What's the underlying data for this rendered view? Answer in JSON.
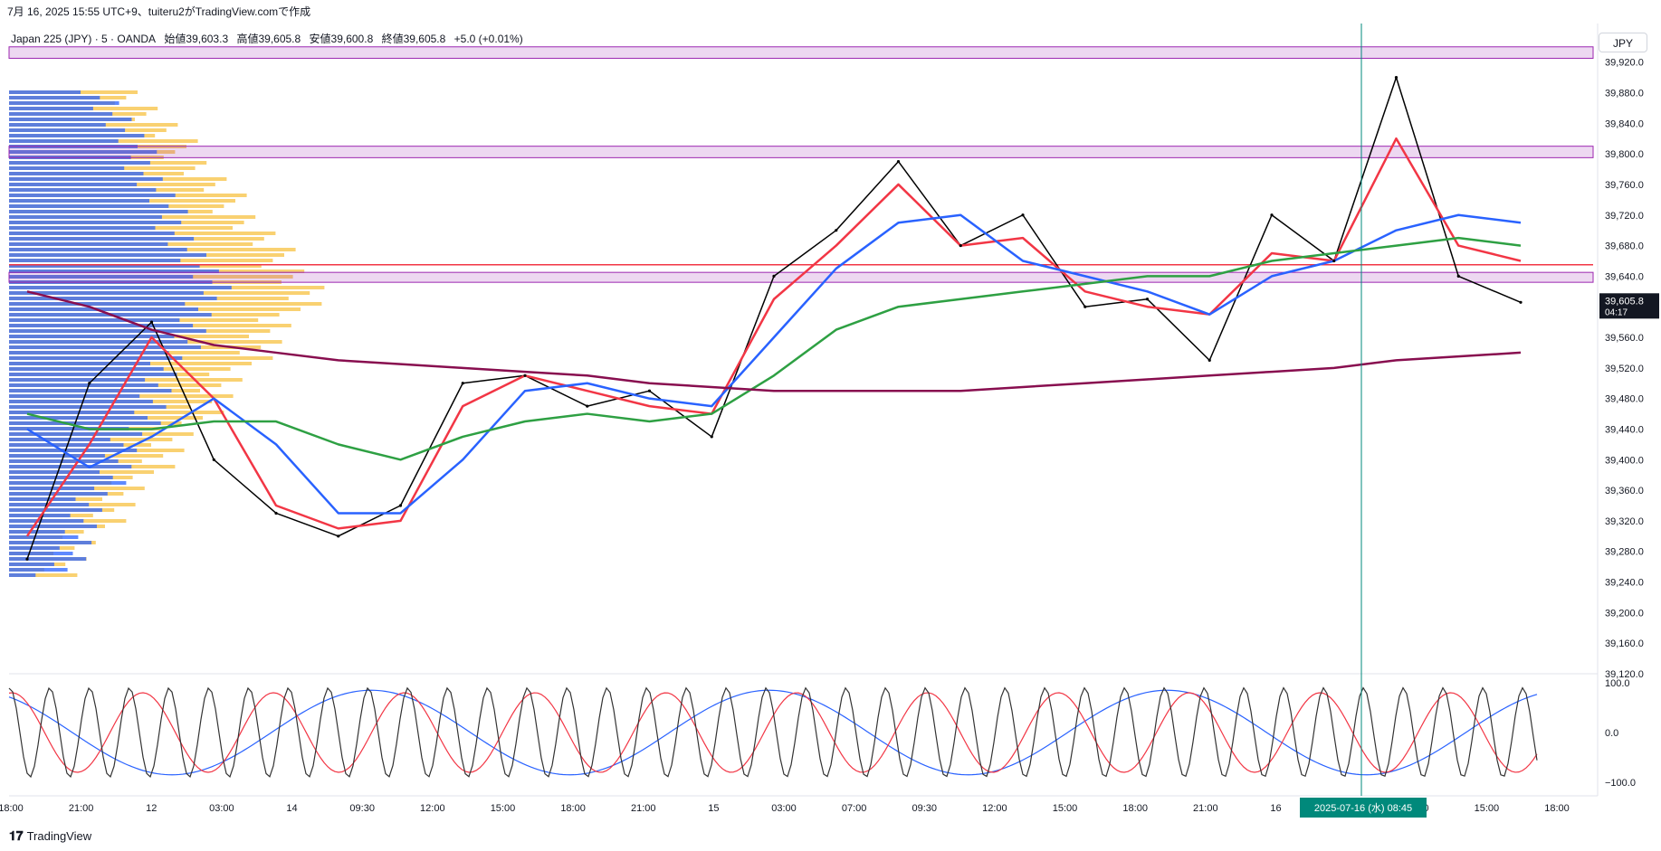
{
  "header": {
    "caption": "7月 16, 2025 15:55 UTC+9、tuiteru2がTradingView.comで作成"
  },
  "legend": {
    "symbol": "Japan 225 (JPY) · 5 · OANDA",
    "open": "始値39,603.3",
    "high": "高値39,605.8",
    "low": "安値39,600.8",
    "close": "終値39,605.8",
    "change": "+5.0 (+0.01%)"
  },
  "currency": "JPY",
  "price_axis": {
    "ticks": [
      "39,920.0",
      "39,880.0",
      "39,840.0",
      "39,800.0",
      "39,760.0",
      "39,720.0",
      "39,680.0",
      "39,640.0",
      "39,600.0",
      "39,560.0",
      "39,520.0",
      "39,480.0",
      "39,440.0",
      "39,400.0",
      "39,360.0",
      "39,320.0",
      "39,280.0",
      "39,240.0",
      "39,200.0",
      "39,160.0",
      "39,120.0"
    ],
    "current_price": "39,605.8",
    "countdown": "04:17"
  },
  "osc_axis": {
    "ticks": [
      "100.0",
      "0.0",
      "−100.0"
    ]
  },
  "time_axis": {
    "labels": [
      "18:00",
      "21:00",
      "12",
      "03:00",
      "14",
      "09:30",
      "12:00",
      "15:00",
      "18:00",
      "21:00",
      "15",
      "03:00",
      "07:00",
      "09:30",
      "12:00",
      "15:00",
      "18:00",
      "21:00",
      "16",
      "03:00",
      "12:00",
      "15:00",
      "18:00"
    ],
    "crosshair_label": "2025-07-16 (水)   08:45"
  },
  "footer": {
    "brand": "TradingView"
  },
  "colors": {
    "candle": "#000000",
    "ema_fast": "#f23645",
    "ema_mid": "#2962ff",
    "ema_slow": "#2ea043",
    "ema_long": "#880e4f",
    "zone": "#9c27b0",
    "hline": "#f23645",
    "crosshair": "#00897b",
    "vp_up": "#f7c242",
    "vp_down": "#2962ff"
  },
  "chart_data": {
    "type": "line",
    "title": "",
    "ylim": [
      39120,
      39935
    ],
    "x": [
      "7/14 09:30",
      "7/14 12:00",
      "7/14 14:30",
      "7/14 17:00",
      "7/14 20:00",
      "7/15 00:00",
      "7/15 03:00",
      "7/15 06:00",
      "7/15 09:00",
      "7/15 11:00",
      "7/15 13:30",
      "7/15 15:30",
      "7/15 18:00",
      "7/15 20:00",
      "7/15 21:30",
      "7/16 00:00",
      "7/16 03:00",
      "7/16 05:00",
      "7/16 07:00",
      "7/16 08:45",
      "7/16 11:00",
      "7/16 13:00",
      "7/16 14:00",
      "7/16 15:00",
      "7/16 15:55"
    ],
    "series": [
      {
        "values": [
          39270,
          39500,
          39580,
          39400,
          39330,
          39300,
          39340,
          39500,
          39510,
          39470,
          39490,
          39430,
          39640,
          39700,
          39790,
          39680,
          39720,
          39600,
          39610,
          39530,
          39720,
          39660,
          39900,
          39640,
          39605.8
        ]
      },
      {
        "values": [
          39300,
          39420,
          39560,
          39480,
          39340,
          39310,
          39320,
          39470,
          39510,
          39490,
          39470,
          39460,
          39610,
          39680,
          39760,
          39680,
          39690,
          39620,
          39600,
          39590,
          39670,
          39660,
          39820,
          39680,
          39660
        ]
      },
      {
        "values": [
          39440,
          39390,
          39430,
          39480,
          39420,
          39330,
          39330,
          39400,
          39490,
          39500,
          39480,
          39470,
          39560,
          39650,
          39710,
          39720,
          39660,
          39640,
          39620,
          39590,
          39640,
          39660,
          39700,
          39720,
          39710
        ]
      },
      {
        "values": [
          39460,
          39440,
          39440,
          39450,
          39450,
          39420,
          39400,
          39430,
          39450,
          39460,
          39450,
          39460,
          39510,
          39570,
          39600,
          39610,
          39620,
          39630,
          39640,
          39640,
          39660,
          39670,
          39680,
          39690,
          39680
        ]
      },
      {
        "values": [
          39620,
          39600,
          39570,
          39550,
          39540,
          39530,
          39525,
          39520,
          39515,
          39510,
          39500,
          39495,
          39490,
          39490,
          39490,
          39490,
          39495,
          39500,
          39505,
          39510,
          39515,
          39520,
          39530,
          39535,
          39540
        ]
      }
    ],
    "oscillator": {
      "ylim": [
        -100,
        100
      ]
    },
    "zones": [
      [
        39925,
        39940
      ],
      [
        39795,
        39810
      ],
      [
        39632,
        39645
      ]
    ],
    "hline": 39655
  }
}
